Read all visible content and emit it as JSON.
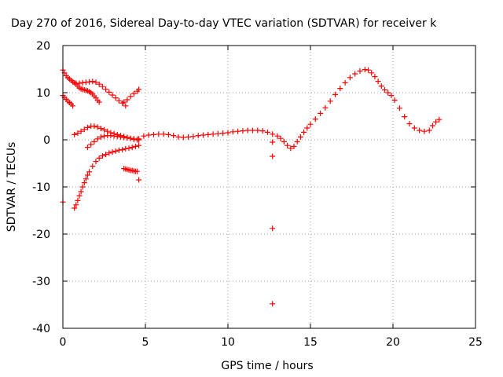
{
  "chart_data": {
    "type": "scatter",
    "title": "Day 270 of 2016, Sidereal Day-to-day VTEC variation (SDTVAR) for receiver k",
    "xlabel": "GPS time / hours",
    "ylabel": "SDTVAR / TECUs",
    "xlim": [
      0,
      25
    ],
    "ylim": [
      -40,
      20
    ],
    "x_ticks": [
      0,
      5,
      10,
      15,
      20,
      25
    ],
    "y_ticks": [
      -40,
      -30,
      -20,
      -10,
      0,
      10,
      20
    ],
    "grid": true,
    "marker": "+",
    "marker_color": "#ff0000",
    "series": [
      {
        "x": [
          0.0,
          0.1,
          0.2,
          0.3,
          0.4,
          0.5,
          0.6,
          0.7,
          0.8,
          1.0,
          1.2,
          1.4,
          1.6,
          1.8,
          2.0,
          2.2,
          2.4,
          2.6,
          2.8,
          3.0,
          3.2,
          3.4,
          3.6,
          3.8
        ],
        "y": [
          14.8,
          14.2,
          13.6,
          13.2,
          12.9,
          12.6,
          12.3,
          12.1,
          12.0,
          12.0,
          12.1,
          12.2,
          12.3,
          12.4,
          12.2,
          11.8,
          11.3,
          10.7,
          10.1,
          9.5,
          8.9,
          8.3,
          7.8,
          7.2
        ]
      },
      {
        "x": [
          0.8,
          0.9,
          1.0,
          1.1,
          1.2,
          1.3,
          1.4,
          1.5,
          1.6,
          1.7,
          1.8,
          1.9,
          2.0,
          2.1,
          2.2
        ],
        "y": [
          11.8,
          11.4,
          11.0,
          10.8,
          10.7,
          10.6,
          10.5,
          10.4,
          10.2,
          10.0,
          9.7,
          9.3,
          8.9,
          8.4,
          8.0
        ]
      },
      {
        "x": [
          3.7,
          3.9,
          4.1,
          4.3,
          4.5,
          4.6
        ],
        "y": [
          8.0,
          8.5,
          9.2,
          9.8,
          10.3,
          10.7
        ]
      },
      {
        "x": [
          0.0,
          0.1,
          0.2,
          0.3,
          0.4,
          0.5,
          0.6
        ],
        "y": [
          9.4,
          9.0,
          8.6,
          8.2,
          7.9,
          7.6,
          7.2
        ]
      },
      {
        "x": [
          0.7,
          0.9,
          1.1,
          1.3,
          1.5,
          1.7,
          1.9,
          2.1,
          2.3,
          2.5,
          2.7,
          2.9,
          3.1,
          3.3,
          3.5,
          3.7,
          3.9,
          4.1,
          4.3,
          4.5
        ],
        "y": [
          1.1,
          1.4,
          1.8,
          2.2,
          2.6,
          2.9,
          2.9,
          2.7,
          2.4,
          2.1,
          1.8,
          1.5,
          1.3,
          1.1,
          0.9,
          0.7,
          0.5,
          0.3,
          0.1,
          0.0
        ]
      },
      {
        "x": [
          1.5,
          1.7,
          1.9,
          2.1,
          2.3,
          2.5,
          2.7,
          2.9,
          3.1,
          3.3,
          3.5,
          3.7,
          3.9,
          4.1,
          4.3,
          4.5,
          4.6
        ],
        "y": [
          -1.6,
          -1.0,
          -0.4,
          0.2,
          0.6,
          0.8,
          0.9,
          0.9,
          0.8,
          0.7,
          0.6,
          0.5,
          0.4,
          0.3,
          0.2,
          0.1,
          0.0
        ]
      },
      {
        "x": [
          0.7,
          0.8,
          0.9,
          1.0,
          1.1,
          1.2,
          1.3,
          1.4,
          1.5,
          1.6,
          1.8,
          2.0,
          2.2,
          2.4,
          2.6,
          2.8,
          3.0,
          3.2,
          3.4,
          3.6,
          3.8,
          4.0,
          4.2,
          4.4,
          4.6
        ],
        "y": [
          -14.5,
          -13.8,
          -12.9,
          -11.9,
          -11.0,
          -10.0,
          -9.1,
          -8.3,
          -7.5,
          -6.8,
          -5.6,
          -4.6,
          -3.9,
          -3.4,
          -3.1,
          -2.8,
          -2.6,
          -2.4,
          -2.2,
          -2.1,
          -1.9,
          -1.8,
          -1.6,
          -1.4,
          -1.2
        ]
      },
      {
        "x": [
          3.7,
          3.8,
          3.9,
          4.0,
          4.1,
          4.2,
          4.3,
          4.4,
          4.5
        ],
        "y": [
          -6.1,
          -6.2,
          -6.3,
          -6.4,
          -6.5,
          -6.5,
          -6.6,
          -6.7,
          -6.7
        ]
      },
      {
        "x": [
          0.0,
          4.6,
          12.7,
          12.7,
          12.7,
          12.7
        ],
        "y": [
          -13.2,
          -8.5,
          -34.8,
          -18.8,
          -3.5,
          -0.5
        ]
      },
      {
        "x": [
          4.6,
          4.9,
          5.2,
          5.5,
          5.8,
          6.1,
          6.4,
          6.7,
          7.0,
          7.3,
          7.6,
          7.9,
          8.2,
          8.5,
          8.8,
          9.1,
          9.4,
          9.7,
          10.0,
          10.3,
          10.6,
          10.9,
          11.2,
          11.5,
          11.8,
          12.1,
          12.4,
          12.7,
          13.0,
          13.2,
          13.4,
          13.6,
          13.8,
          14.0,
          14.2,
          14.4,
          14.6,
          14.8,
          15.0,
          15.3,
          15.6,
          15.9,
          16.2,
          16.5,
          16.8,
          17.1,
          17.4,
          17.7,
          18.0,
          18.3,
          18.5,
          18.7,
          18.9,
          19.1,
          19.3,
          19.5,
          19.7,
          19.9,
          20.1,
          20.4,
          20.7,
          21.0,
          21.3,
          21.6,
          21.9,
          22.2,
          22.4,
          22.6,
          22.8
        ],
        "y": [
          0.2,
          0.8,
          1.0,
          1.1,
          1.2,
          1.2,
          1.1,
          0.9,
          0.6,
          0.5,
          0.6,
          0.7,
          0.9,
          1.0,
          1.1,
          1.2,
          1.3,
          1.4,
          1.5,
          1.7,
          1.8,
          1.9,
          2.0,
          2.0,
          2.0,
          1.9,
          1.6,
          1.2,
          0.8,
          0.3,
          -0.4,
          -1.2,
          -1.8,
          -1.4,
          -0.4,
          0.6,
          1.6,
          2.5,
          3.3,
          4.4,
          5.6,
          6.8,
          8.2,
          9.6,
          10.9,
          12.1,
          13.2,
          14.0,
          14.6,
          14.9,
          14.8,
          14.2,
          13.4,
          12.4,
          11.4,
          10.6,
          10.0,
          9.4,
          8.4,
          6.7,
          4.9,
          3.4,
          2.5,
          2.0,
          1.8,
          2.0,
          3.0,
          3.8,
          4.3
        ]
      }
    ]
  }
}
